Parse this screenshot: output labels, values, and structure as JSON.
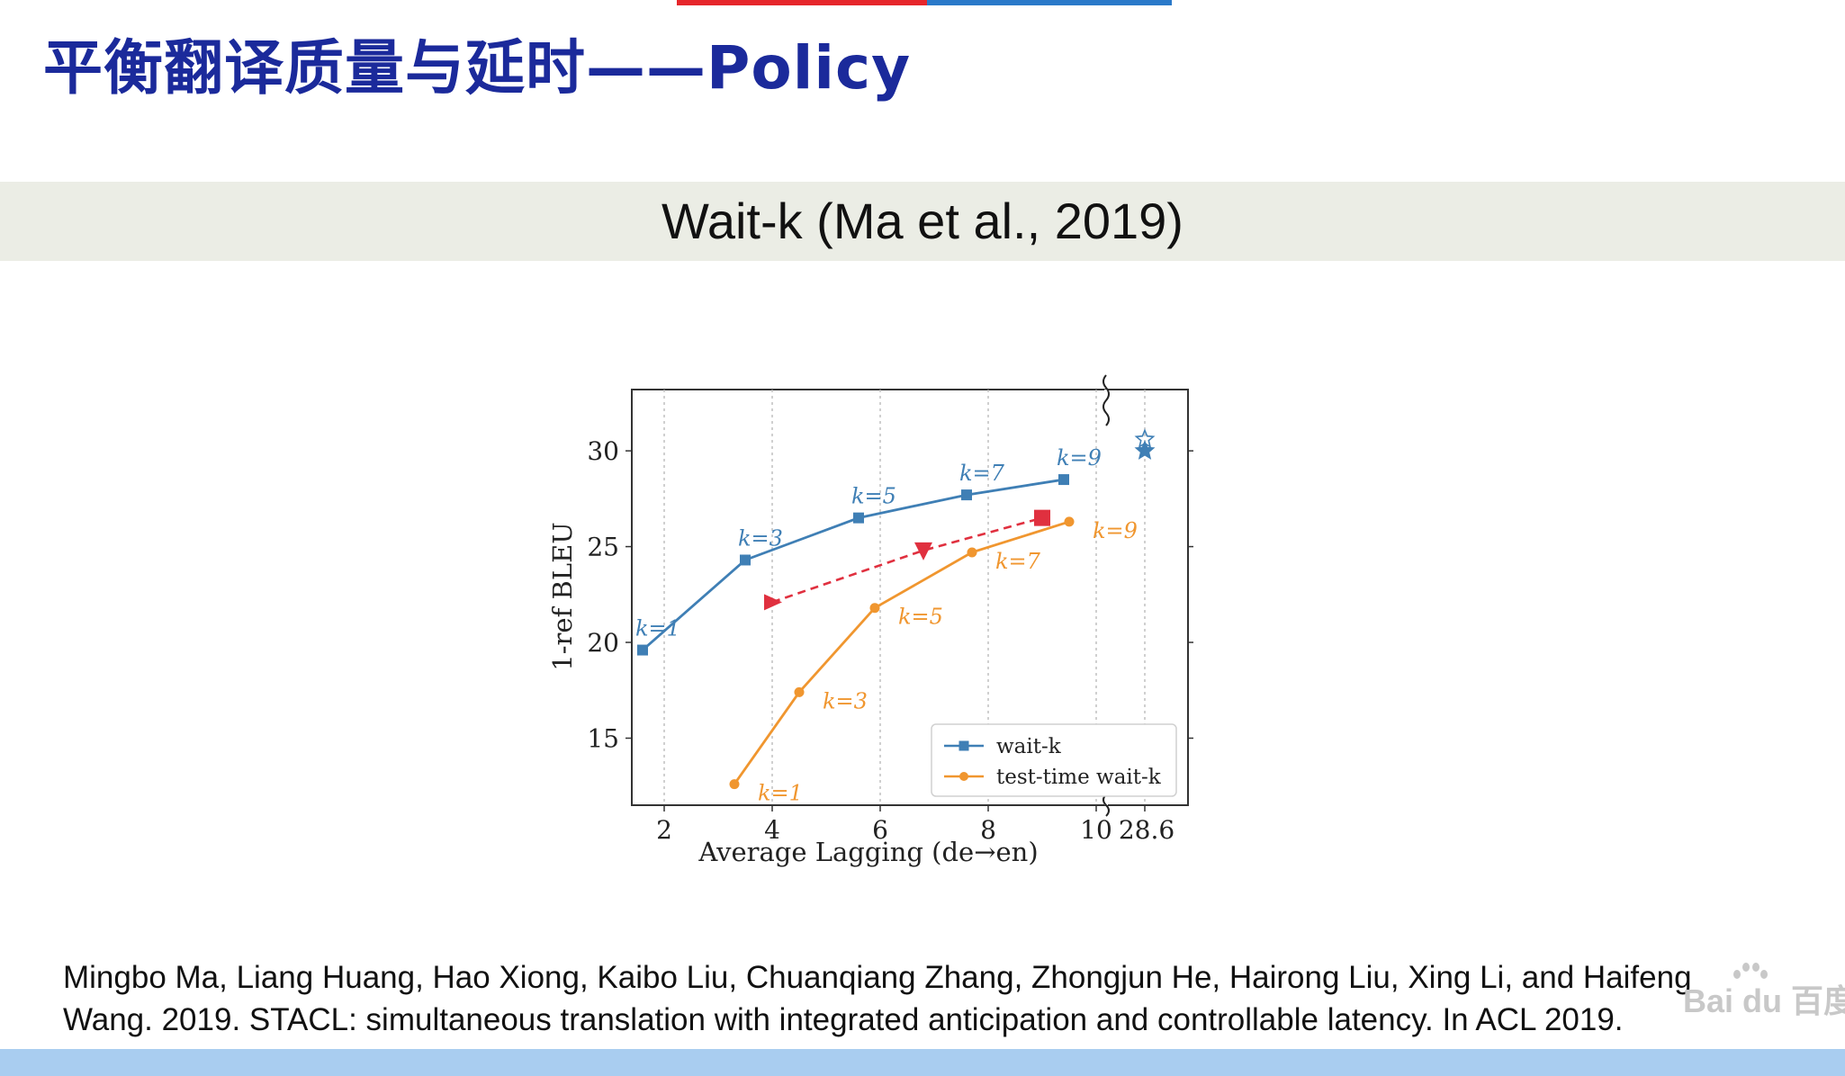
{
  "slide": {
    "title": "平衡翻译质量与延时——Policy",
    "subtitle": "Wait-k (Ma et al., 2019)",
    "citation": "Mingbo Ma, Liang Huang, Hao Xiong, Kaibo Liu, Chuanqiang Zhang, Zhongjun He, Hairong Liu, Xing Li, and Haifeng Wang. 2019. STACL: simultaneous translation with integrated anticipation and controllable latency. In ACL 2019.",
    "watermark": "Bai du 百度",
    "colors": {
      "title": "#1b2a9b",
      "accent_red": "#e6262b",
      "accent_blue": "#2a79c9",
      "band": "#ebede5"
    }
  },
  "chart_data": {
    "type": "line",
    "title": "",
    "xlabel": "Average Lagging (de→en)",
    "ylabel": "1-ref BLEU",
    "xlim": [
      1.4,
      11.7
    ],
    "ylim": [
      11.5,
      33.2
    ],
    "x_ticks": [
      2,
      4,
      6,
      8,
      10
    ],
    "x_tick_labels": [
      "2",
      "4",
      "6",
      "8",
      "10"
    ],
    "x_break_label": "28.6",
    "y_ticks": [
      15,
      20,
      25,
      30
    ],
    "y_tick_labels": [
      "15",
      "20",
      "25",
      "30"
    ],
    "grid": "vertical dotted",
    "legend_position": "bottom-right",
    "series": [
      {
        "name": "wait-k",
        "color": "#3f7fb5",
        "marker": "square",
        "x": [
          1.6,
          3.5,
          5.6,
          7.6,
          9.4
        ],
        "y": [
          19.6,
          24.3,
          26.5,
          27.7,
          28.5
        ],
        "point_labels": [
          "k=1",
          "k=3",
          "k=5",
          "k=7",
          "k=9"
        ]
      },
      {
        "name": "test-time wait-k",
        "color": "#f0962f",
        "marker": "circle",
        "x": [
          3.3,
          4.5,
          5.9,
          7.7,
          9.5
        ],
        "y": [
          12.6,
          17.4,
          21.8,
          24.7,
          26.3
        ],
        "point_labels": [
          "k=1",
          "k=3",
          "k=5",
          "k=7",
          "k=9"
        ]
      },
      {
        "name": "",
        "color": "#e0303f",
        "style": "dashed",
        "markers": [
          "triangle-right",
          "triangle-down",
          "square"
        ],
        "x": [
          4.0,
          6.8,
          9.0
        ],
        "y": [
          22.1,
          24.8,
          26.5
        ]
      }
    ],
    "star_points": [
      {
        "marker": "star-open",
        "color": "#3f7fb5",
        "y": 30.6
      },
      {
        "marker": "star-filled",
        "color": "#3f7fb5",
        "y": 30.0
      }
    ]
  }
}
